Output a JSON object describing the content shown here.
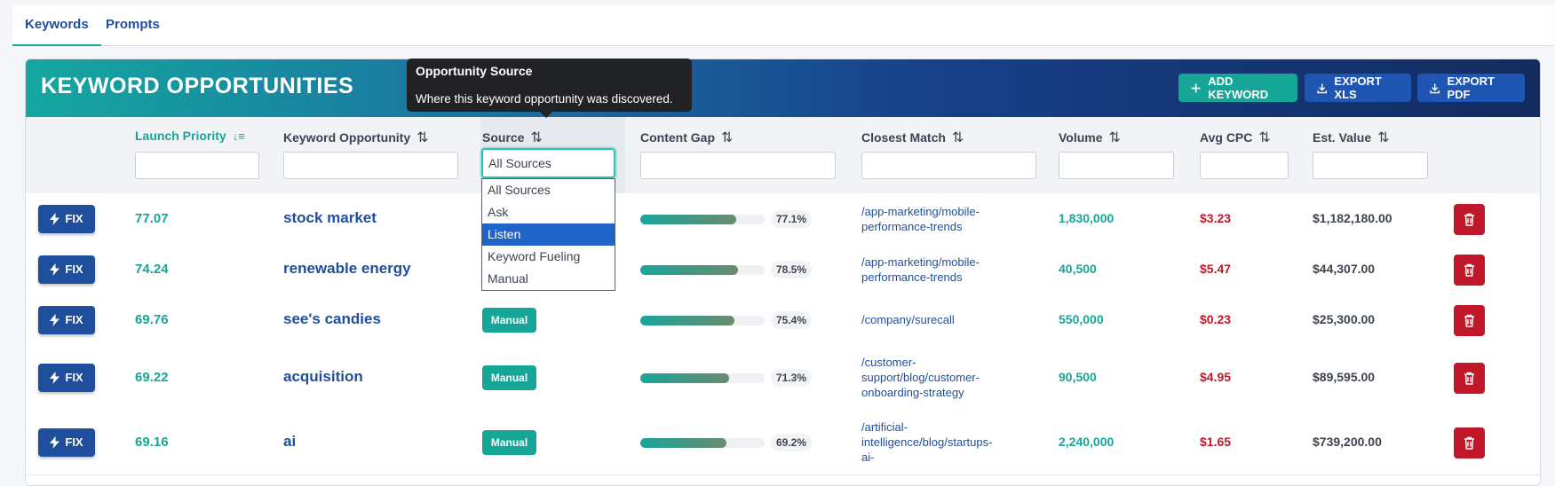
{
  "tabs": [
    {
      "label": "Keywords",
      "active": true
    },
    {
      "label": "Prompts",
      "active": false
    }
  ],
  "header": {
    "title": "KEYWORD OPPORTUNITIES",
    "add_keyword": "ADD KEYWORD",
    "export_xls": "EXPORT XLS",
    "export_pdf": "EXPORT PDF"
  },
  "tooltip": {
    "title": "Opportunity Source",
    "text": "Where this keyword opportunity was discovered."
  },
  "columns": {
    "launch_priority": "Launch Priority",
    "keyword": "Keyword Opportunity",
    "source": "Source",
    "content_gap": "Content Gap",
    "closest_match": "Closest Match",
    "volume": "Volume",
    "avg_cpc": "Avg CPC",
    "est_value": "Est. Value"
  },
  "source_filter": {
    "selected": "All Sources",
    "options": [
      "All Sources",
      "Ask",
      "Listen",
      "Keyword Fueling",
      "Manual"
    ],
    "highlighted": "Listen"
  },
  "fix_label": "FIX",
  "rows": [
    {
      "priority": "77.07",
      "keyword": "stock market",
      "source": "",
      "gap": 0.771,
      "gap_label": "77.1%",
      "match": "/app-marketing/mobile-performance-trends",
      "volume": "1,830,000",
      "cpc": "$3.23",
      "value": "$1,182,180.00"
    },
    {
      "priority": "74.24",
      "keyword": "renewable energy",
      "source": "",
      "gap": 0.785,
      "gap_label": "78.5%",
      "match": "/app-marketing/mobile-performance-trends",
      "volume": "40,500",
      "cpc": "$5.47",
      "value": "$44,307.00"
    },
    {
      "priority": "69.76",
      "keyword": "see's candies",
      "source": "Manual",
      "gap": 0.754,
      "gap_label": "75.4%",
      "match": "/company/surecall",
      "volume": "550,000",
      "cpc": "$0.23",
      "value": "$25,300.00"
    },
    {
      "priority": "69.22",
      "keyword": "acquisition",
      "source": "Manual",
      "gap": 0.713,
      "gap_label": "71.3%",
      "match": "/customer-support/blog/customer-onboarding-strategy",
      "volume": "90,500",
      "cpc": "$4.95",
      "value": "$89,595.00"
    },
    {
      "priority": "69.16",
      "keyword": "ai",
      "source": "Manual",
      "gap": 0.692,
      "gap_label": "69.2%",
      "match": "/artificial-intelligence/blog/startups-ai-",
      "volume": "2,240,000",
      "cpc": "$1.65",
      "value": "$739,200.00"
    }
  ],
  "colors": {
    "teal": "#16a697",
    "blue": "#1f4f9c",
    "red": "#c0182a"
  }
}
